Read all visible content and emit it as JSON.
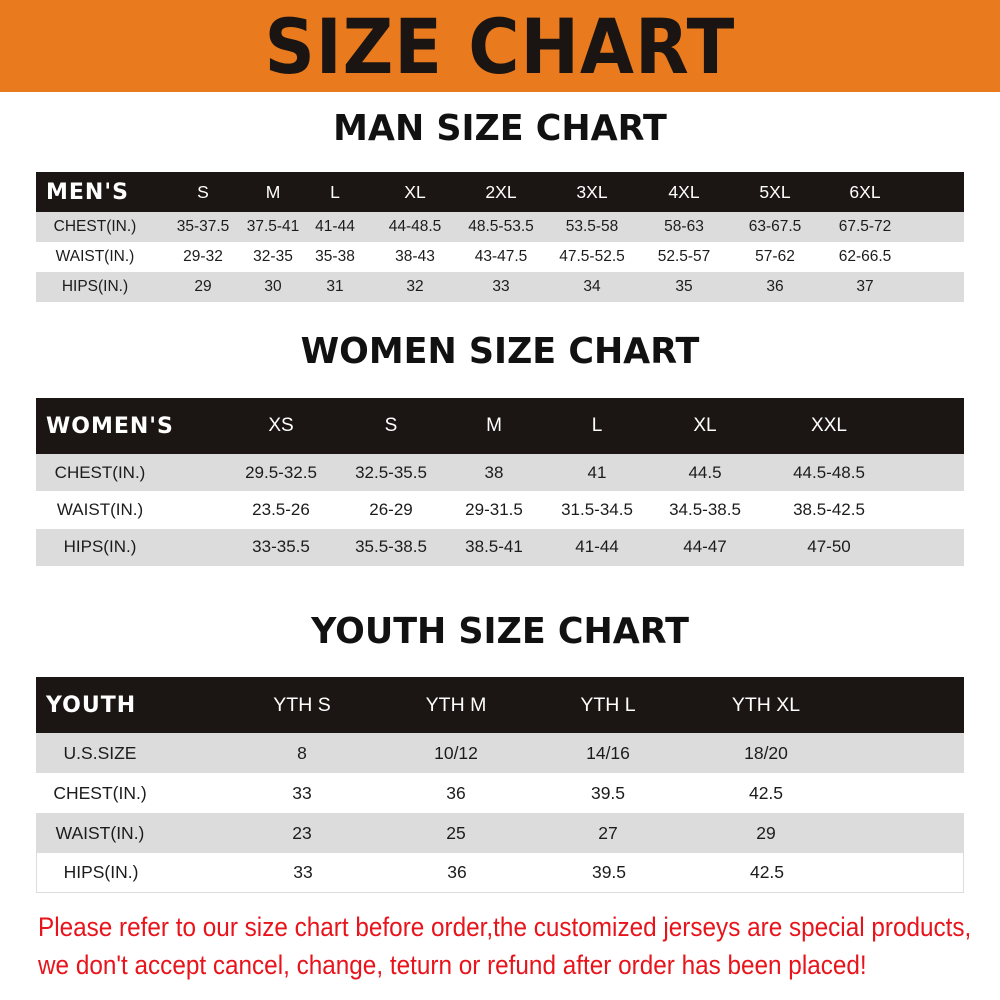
{
  "banner_title": "SIZE CHART",
  "men": {
    "title": "MAN SIZE CHART",
    "header": [
      "MEN'S",
      "S",
      "M",
      "L",
      "XL",
      "2XL",
      "3XL",
      "4XL",
      "5XL",
      "6XL"
    ],
    "rows": [
      [
        "CHEST(IN.)",
        "35-37.5",
        "37.5-41",
        "41-44",
        "44-48.5",
        "48.5-53.5",
        "53.5-58",
        "58-63",
        "63-67.5",
        "67.5-72"
      ],
      [
        "WAIST(IN.)",
        "29-32",
        "32-35",
        "35-38",
        "38-43",
        "43-47.5",
        "47.5-52.5",
        "52.5-57",
        "57-62",
        "62-66.5"
      ],
      [
        "HIPS(IN.)",
        "29",
        "30",
        "31",
        "32",
        "33",
        "34",
        "35",
        "36",
        "37"
      ]
    ]
  },
  "women": {
    "title": "WOMEN SIZE CHART",
    "header": [
      "WOMEN'S",
      "XS",
      "S",
      "M",
      "L",
      "XL",
      "XXL"
    ],
    "rows": [
      [
        "CHEST(IN.)",
        "29.5-32.5",
        "32.5-35.5",
        "38",
        "41",
        "44.5",
        "44.5-48.5"
      ],
      [
        "WAIST(IN.)",
        "23.5-26",
        "26-29",
        "29-31.5",
        "31.5-34.5",
        "34.5-38.5",
        "38.5-42.5"
      ],
      [
        "HIPS(IN.)",
        "33-35.5",
        "35.5-38.5",
        "38.5-41",
        "41-44",
        "44-47",
        "47-50"
      ]
    ]
  },
  "youth": {
    "title": "YOUTH SIZE CHART",
    "header": [
      "YOUTH",
      "YTH S",
      "YTH M",
      "YTH L",
      "YTH XL"
    ],
    "rows": [
      [
        "U.S.SIZE",
        "8",
        "10/12",
        "14/16",
        "18/20"
      ],
      [
        "CHEST(IN.)",
        "33",
        "36",
        "39.5",
        "42.5"
      ],
      [
        "WAIST(IN.)",
        "23",
        "25",
        "27",
        "29"
      ],
      [
        "HIPS(IN.)",
        "33",
        "36",
        "39.5",
        "42.5"
      ]
    ]
  },
  "notice": [
    "Please refer to our size chart before order,the customized jerseys are special products,",
    "we don't accept cancel, change, teturn or refund after order has been placed!"
  ],
  "colors": {
    "banner": "#e97a1e",
    "header_row": "#1b1614",
    "stripe": "#dcdcdc",
    "notice": "#e8141c"
  }
}
